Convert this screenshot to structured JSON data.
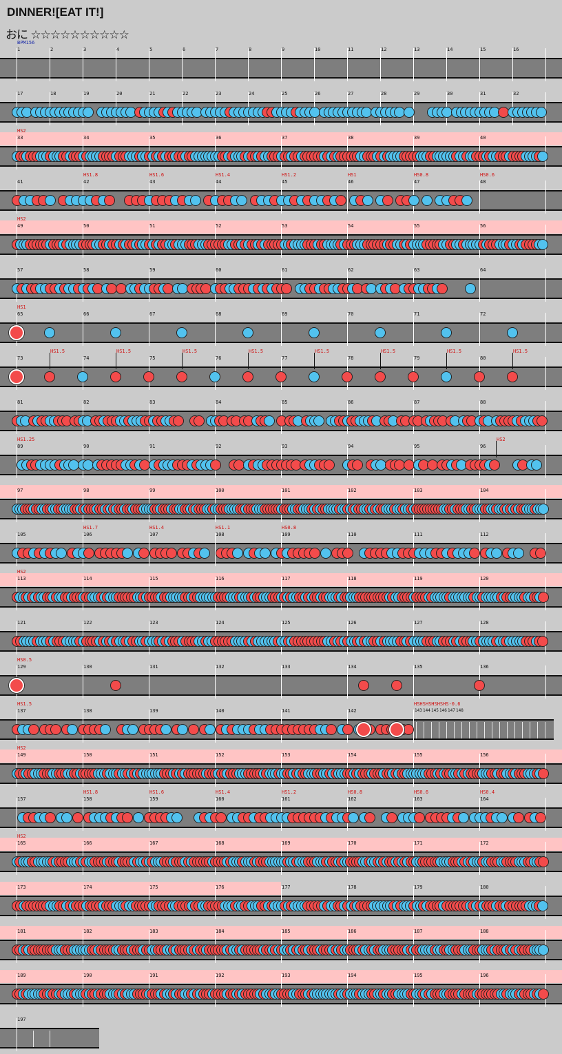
{
  "song": {
    "title": "DINNER![EAT IT!]",
    "course": "おに",
    "stars": "☆☆☆☆☆☆☆☆☆☆"
  },
  "colors": {
    "don": "#f34b4b",
    "ka": "#52c2ee",
    "lane": "#7e7e7e",
    "hs_band": "#ffc4c4",
    "background": "#cbcbcb"
  },
  "bpm_label": "BPM156",
  "rows": [
    {
      "start": 1,
      "bars": 16,
      "density": 0,
      "pink": false,
      "hs": []
    },
    {
      "start": 17,
      "bars": 16,
      "density": 7,
      "pink": false,
      "hs": [],
      "red": 0.1
    },
    {
      "start": 33,
      "bars": 8,
      "density": 20,
      "pink": true,
      "hs": [
        {
          "bar": 33,
          "text": "HS2"
        }
      ]
    },
    {
      "start": 41,
      "bars": 8,
      "density": 10,
      "pink": false,
      "hs": [
        {
          "bar": 42,
          "text": "HS1.8"
        },
        {
          "bar": 43,
          "text": "HS1.6"
        },
        {
          "bar": 44,
          "text": "HS1.4"
        },
        {
          "bar": 45,
          "text": "HS1.2"
        },
        {
          "bar": 46,
          "text": "HS1"
        },
        {
          "bar": 47,
          "text": "HS0.8"
        },
        {
          "bar": 48,
          "text": "HS0.6"
        }
      ],
      "empty_last": true
    },
    {
      "start": 49,
      "bars": 8,
      "density": 20,
      "pink": true,
      "hs": [
        {
          "bar": 49,
          "text": "HS2"
        }
      ]
    },
    {
      "start": 57,
      "bars": 8,
      "density": 14,
      "pink": false,
      "hs": [],
      "empty_last": true
    },
    {
      "start": 65,
      "bars": 8,
      "density": 1,
      "pink": false,
      "hs": [
        {
          "bar": 65,
          "text": "HS1"
        }
      ],
      "sparse": "single"
    },
    {
      "start": 73,
      "bars": 8,
      "density": 2,
      "pink": false,
      "hs": [],
      "sparse": "double",
      "midhs": "HS1.5"
    },
    {
      "start": 81,
      "bars": 8,
      "density": 16,
      "pink": false,
      "hs": []
    },
    {
      "start": 89,
      "bars": 8,
      "density": 14,
      "pink": false,
      "hs": [
        {
          "bar": 89,
          "text": "HS1.25"
        }
      ],
      "hs_end": "HS2"
    },
    {
      "start": 97,
      "bars": 8,
      "density": 24,
      "pink": true,
      "hs": []
    },
    {
      "start": 105,
      "bars": 8,
      "density": 12,
      "pink": false,
      "hs": [
        {
          "bar": 106,
          "text": "HS1.7"
        },
        {
          "bar": 107,
          "text": "HS1.4"
        },
        {
          "bar": 108,
          "text": "HS1.1"
        },
        {
          "bar": 109,
          "text": "HS0.8"
        }
      ]
    },
    {
      "start": 113,
      "bars": 8,
      "density": 22,
      "pink": true,
      "hs": [
        {
          "bar": 113,
          "text": "HS2"
        }
      ]
    },
    {
      "start": 121,
      "bars": 8,
      "density": 20,
      "pink": false,
      "hs": []
    },
    {
      "start": 129,
      "bars": 8,
      "density": 1,
      "pink": false,
      "hs": [
        {
          "bar": 129,
          "text": "HS0.5"
        }
      ],
      "sparse": "sparse129"
    },
    {
      "start": 137,
      "bars": 6,
      "density": 12,
      "pink": false,
      "hs": [
        {
          "bar": 137,
          "text": "HS1.5"
        }
      ],
      "tail": "143"
    },
    {
      "start": 149,
      "bars": 8,
      "density": 22,
      "pink": true,
      "hs": [
        {
          "bar": 149,
          "text": "HS2"
        }
      ]
    },
    {
      "start": 157,
      "bars": 8,
      "density": 12,
      "pink": false,
      "hs": [
        {
          "bar": 158,
          "text": "HS1.8"
        },
        {
          "bar": 159,
          "text": "HS1.6"
        },
        {
          "bar": 160,
          "text": "HS1.4"
        },
        {
          "bar": 161,
          "text": "HS1.2"
        },
        {
          "bar": 162,
          "text": "HS0.8"
        },
        {
          "bar": 163,
          "text": "HS0.6"
        },
        {
          "bar": 164,
          "text": "HS0.4"
        }
      ]
    },
    {
      "start": 165,
      "bars": 8,
      "density": 22,
      "pink": true,
      "hs": [
        {
          "bar": 165,
          "text": "HS2"
        }
      ]
    },
    {
      "start": 173,
      "bars": 8,
      "density": 20,
      "pink": "half",
      "hs": []
    },
    {
      "start": 181,
      "bars": 8,
      "density": 22,
      "pink": true,
      "hs": []
    },
    {
      "start": 189,
      "bars": 8,
      "density": 22,
      "pink": true,
      "hs": []
    },
    {
      "start": 197,
      "bars": 1,
      "density": 0,
      "pink": false,
      "hs": [],
      "final": true
    }
  ],
  "tail_label": "HSHSHSHSHSHS-0.6",
  "tail_bars": [
    "143",
    "144",
    "145",
    "146",
    "147",
    "148"
  ]
}
